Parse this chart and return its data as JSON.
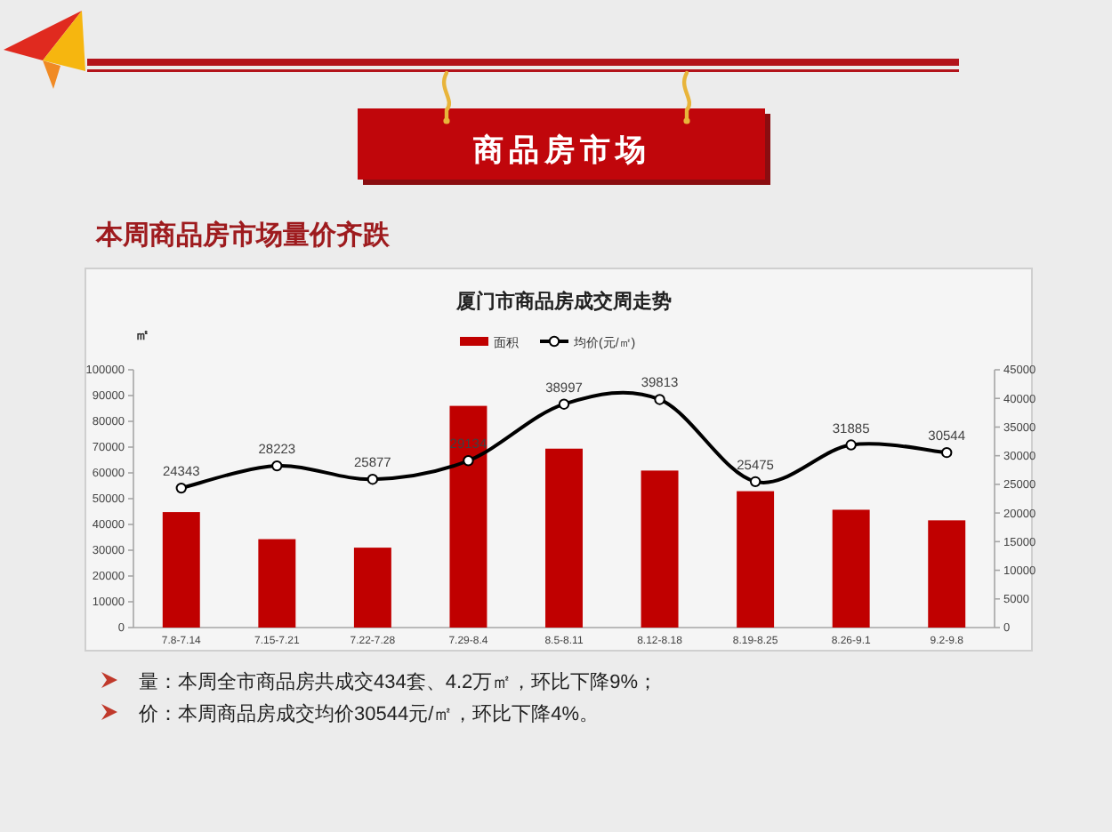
{
  "chart_data": {
    "type": "bar",
    "title": "厦门市商品房成交周走势",
    "ylabel": "㎡",
    "categories": [
      "7.8-7.14",
      "7.15-7.21",
      "7.22-7.28",
      "7.29-8.4",
      "8.5-8.11",
      "8.12-8.18",
      "8.19-8.25",
      "8.26-9.1",
      "9.2-9.8"
    ],
    "series": [
      {
        "name": "面积",
        "color": "#c00000",
        "values": [
          44800,
          34300,
          31000,
          86000,
          69400,
          60900,
          52900,
          45700,
          41600
        ]
      },
      {
        "name": "均价(元/㎡)",
        "type": "line",
        "axis": "y2",
        "color": "#000000",
        "values": [
          24343,
          28223,
          25877,
          29134,
          38997,
          39813,
          25475,
          31885,
          30544
        ],
        "value_labels": [
          "24343",
          "28223",
          "25877",
          "29134",
          "38997",
          "39813",
          "25475",
          "31885",
          "30544"
        ]
      }
    ],
    "ylim": [
      0,
      100000
    ],
    "yticks": [
      0,
      10000,
      20000,
      30000,
      40000,
      50000,
      60000,
      70000,
      80000,
      90000,
      100000
    ],
    "y2lim": [
      0,
      45000
    ],
    "y2ticks": [
      0,
      5000,
      10000,
      15000,
      20000,
      25000,
      30000,
      35000,
      40000,
      45000
    ],
    "marker": "circle",
    "legend": "top",
    "annotations": [
      "商品房市场",
      "本周商品房市场量价齐跌",
      "量：本周全市商品房共成交434套、4.2万㎡，环比下降9%；",
      "价：本周商品房成交均价30544元/㎡，环比下降4%。"
    ]
  }
}
